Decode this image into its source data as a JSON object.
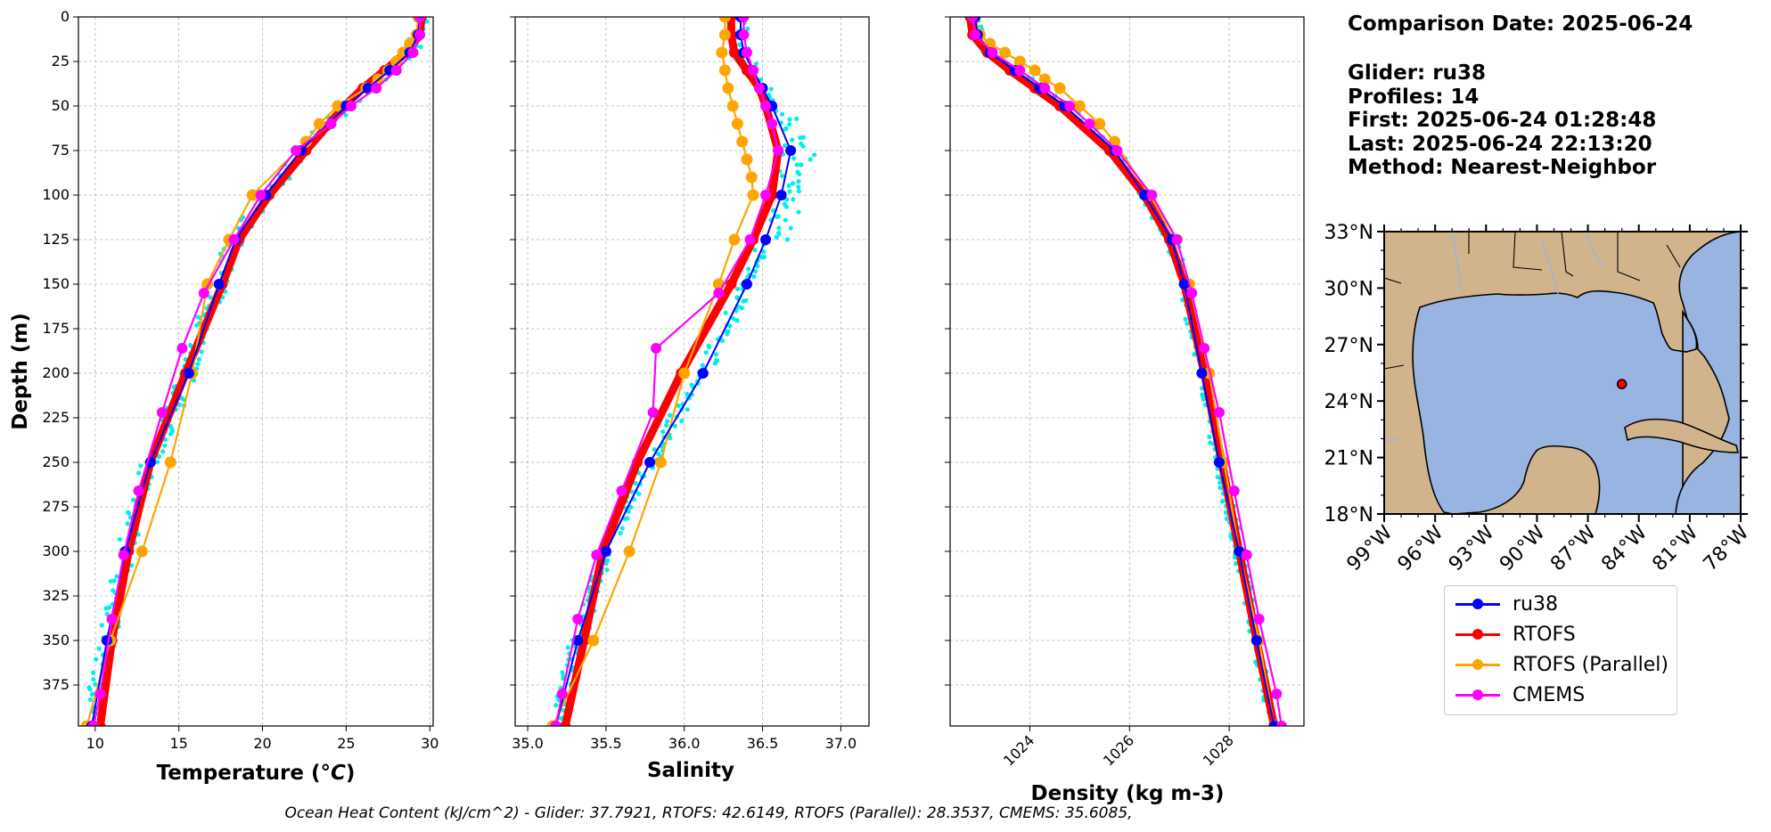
{
  "colors": {
    "ru38": "#0000ff",
    "rtofs": "#ff0000",
    "rtofs_parallel": "#ffa500",
    "cmems": "#ff00ff",
    "glider_raw": "#00eeee",
    "land": "#d2b48c",
    "ocean": "#98b4e0"
  },
  "info": {
    "comparison_date": "Comparison Date: 2025-06-24",
    "glider": "Glider: ru38",
    "profiles": "Profiles: 14",
    "first": "First: 2025-06-24 01:28:48",
    "last": "Last: 2025-06-24 22:13:20",
    "method": "Method: Nearest-Neighbor"
  },
  "legend": {
    "items": [
      {
        "label": "ru38",
        "color": "#0000ff"
      },
      {
        "label": "RTOFS",
        "color": "#ff0000"
      },
      {
        "label": "RTOFS (Parallel)",
        "color": "#ffa500"
      },
      {
        "label": "CMEMS",
        "color": "#ff00ff"
      }
    ]
  },
  "footer_text": "Ocean Heat Content (kJ/cm^2) - Glider: 37.7921,  RTOFS: 42.6149,  RTOFS (Parallel): 28.3537,  CMEMS: 35.6085,",
  "chart_data": [
    {
      "type": "line",
      "xlabel": "Temperature (°C)",
      "ylabel": "Depth (m)",
      "xlim": [
        9,
        30.2
      ],
      "ylim": [
        398,
        0
      ],
      "xticks": [
        10,
        15,
        20,
        25,
        30
      ],
      "yticks": [
        0,
        25,
        50,
        75,
        100,
        125,
        150,
        175,
        200,
        225,
        250,
        275,
        300,
        325,
        350,
        375
      ],
      "grid": true,
      "series": [
        {
          "name": "ru38",
          "depth": [
            0,
            10,
            20,
            30,
            40,
            50,
            75,
            100,
            125,
            150,
            200,
            250,
            300,
            350,
            398
          ],
          "values": [
            29.4,
            29.3,
            28.8,
            27.6,
            26.3,
            25.0,
            22.3,
            20.2,
            18.4,
            17.4,
            15.6,
            13.3,
            11.8,
            10.7,
            9.8
          ]
        },
        {
          "name": "RTOFS",
          "depth": [
            0,
            10,
            20,
            30,
            40,
            50,
            75,
            100,
            125,
            150,
            200,
            250,
            300,
            350,
            398
          ],
          "values": [
            29.5,
            29.4,
            28.6,
            27.3,
            26.0,
            24.9,
            22.6,
            20.4,
            18.6,
            17.6,
            15.4,
            13.3,
            12.0,
            11.0,
            10.3
          ]
        },
        {
          "name": "RTOFS (Parallel)",
          "depth": [
            0,
            10,
            15,
            20,
            25,
            30,
            35,
            40,
            50,
            60,
            70,
            100,
            125,
            150,
            200,
            250,
            300,
            350,
            398
          ],
          "values": [
            29.3,
            29.2,
            28.8,
            28.4,
            28.0,
            27.5,
            26.9,
            26.2,
            24.5,
            23.4,
            22.6,
            19.4,
            18.0,
            16.7,
            15.8,
            14.5,
            12.8,
            10.9,
            9.5
          ]
        },
        {
          "name": "CMEMS",
          "depth": [
            0,
            10,
            20,
            30,
            40,
            50,
            60,
            75,
            100,
            125,
            155,
            186,
            222,
            266,
            302,
            338,
            380,
            398
          ],
          "values": [
            29.4,
            29.4,
            29.0,
            28.0,
            26.8,
            25.3,
            24.1,
            22.0,
            19.9,
            18.3,
            16.5,
            15.2,
            14.0,
            12.6,
            11.7,
            11.0,
            10.3,
            9.9
          ]
        }
      ]
    },
    {
      "type": "line",
      "xlabel": "Salinity",
      "xlim": [
        34.92,
        37.18
      ],
      "ylim": [
        398,
        0
      ],
      "xticks": [
        35.0,
        35.5,
        36.0,
        36.5,
        37.0
      ],
      "grid": true,
      "series": [
        {
          "name": "ru38",
          "depth": [
            0,
            10,
            20,
            30,
            40,
            50,
            75,
            100,
            125,
            150,
            200,
            250,
            300,
            350,
            398
          ],
          "values": [
            36.36,
            36.36,
            36.38,
            36.44,
            36.5,
            36.56,
            36.68,
            36.62,
            36.52,
            36.4,
            36.12,
            35.78,
            35.5,
            35.32,
            35.18
          ]
        },
        {
          "name": "RTOFS",
          "depth": [
            0,
            10,
            20,
            30,
            40,
            50,
            75,
            100,
            125,
            150,
            200,
            250,
            300,
            350,
            398
          ],
          "values": [
            36.3,
            36.3,
            36.32,
            36.4,
            36.48,
            36.52,
            36.6,
            36.56,
            36.44,
            36.3,
            35.98,
            35.7,
            35.48,
            35.36,
            35.24
          ]
        },
        {
          "name": "RTOFS (Parallel)",
          "depth": [
            0,
            10,
            20,
            30,
            40,
            50,
            60,
            70,
            80,
            90,
            100,
            125,
            150,
            200,
            250,
            300,
            350,
            398
          ],
          "values": [
            36.26,
            36.26,
            36.24,
            36.26,
            36.28,
            36.31,
            36.34,
            36.37,
            36.4,
            36.43,
            36.44,
            36.32,
            36.22,
            36.0,
            35.85,
            35.65,
            35.42,
            35.16
          ]
        },
        {
          "name": "CMEMS",
          "depth": [
            0,
            10,
            20,
            30,
            40,
            50,
            60,
            75,
            100,
            125,
            155,
            186,
            222,
            266,
            302,
            338,
            380,
            398
          ],
          "values": [
            36.38,
            36.38,
            36.4,
            36.44,
            36.48,
            36.52,
            36.56,
            36.6,
            36.52,
            36.42,
            36.22,
            35.82,
            35.8,
            35.6,
            35.44,
            35.32,
            35.22,
            35.18
          ]
        }
      ]
    },
    {
      "type": "line",
      "xlabel": "Density (kg m-3)",
      "xlim": [
        1022.4,
        1029.5
      ],
      "ylim": [
        398,
        0
      ],
      "xticks": [
        1024,
        1026,
        1028
      ],
      "grid": true,
      "series": [
        {
          "name": "ru38",
          "depth": [
            0,
            10,
            20,
            30,
            40,
            50,
            75,
            100,
            125,
            150,
            200,
            250,
            300,
            350,
            398
          ],
          "values": [
            1022.9,
            1022.95,
            1023.2,
            1023.7,
            1024.2,
            1024.7,
            1025.7,
            1026.3,
            1026.85,
            1027.1,
            1027.45,
            1027.8,
            1028.2,
            1028.55,
            1028.9
          ]
        },
        {
          "name": "RTOFS",
          "depth": [
            0,
            10,
            20,
            30,
            40,
            50,
            75,
            100,
            125,
            150,
            200,
            250,
            300,
            350,
            398
          ],
          "values": [
            1022.8,
            1022.85,
            1023.15,
            1023.6,
            1024.1,
            1024.6,
            1025.6,
            1026.3,
            1026.8,
            1027.1,
            1027.5,
            1027.85,
            1028.2,
            1028.55,
            1028.9
          ]
        },
        {
          "name": "RTOFS (Parallel)",
          "depth": [
            0,
            10,
            15,
            20,
            25,
            30,
            35,
            40,
            50,
            60,
            70,
            100,
            125,
            150,
            200,
            250,
            300,
            350,
            398
          ],
          "values": [
            1022.9,
            1023.0,
            1023.2,
            1023.5,
            1023.8,
            1024.1,
            1024.3,
            1024.6,
            1025.0,
            1025.4,
            1025.7,
            1026.4,
            1026.95,
            1027.2,
            1027.6,
            1027.9,
            1028.2,
            1028.6,
            1028.9
          ]
        },
        {
          "name": "CMEMS",
          "depth": [
            0,
            10,
            20,
            30,
            40,
            50,
            60,
            75,
            100,
            125,
            155,
            186,
            222,
            266,
            302,
            338,
            380,
            398
          ],
          "values": [
            1022.85,
            1022.9,
            1023.25,
            1023.8,
            1024.3,
            1024.8,
            1025.2,
            1025.75,
            1026.45,
            1026.95,
            1027.25,
            1027.5,
            1027.8,
            1028.1,
            1028.35,
            1028.6,
            1028.95,
            1029.05
          ]
        }
      ]
    },
    {
      "type": "map",
      "lat_labels": [
        "33°N",
        "30°N",
        "27°N",
        "24°N",
        "21°N",
        "18°N"
      ],
      "lon_labels": [
        "99°W",
        "96°W",
        "93°W",
        "90°W",
        "87°W",
        "84°W",
        "81°W",
        "78°W"
      ],
      "glider_position": {
        "lat": 24.9,
        "lon": -85.0
      }
    }
  ]
}
